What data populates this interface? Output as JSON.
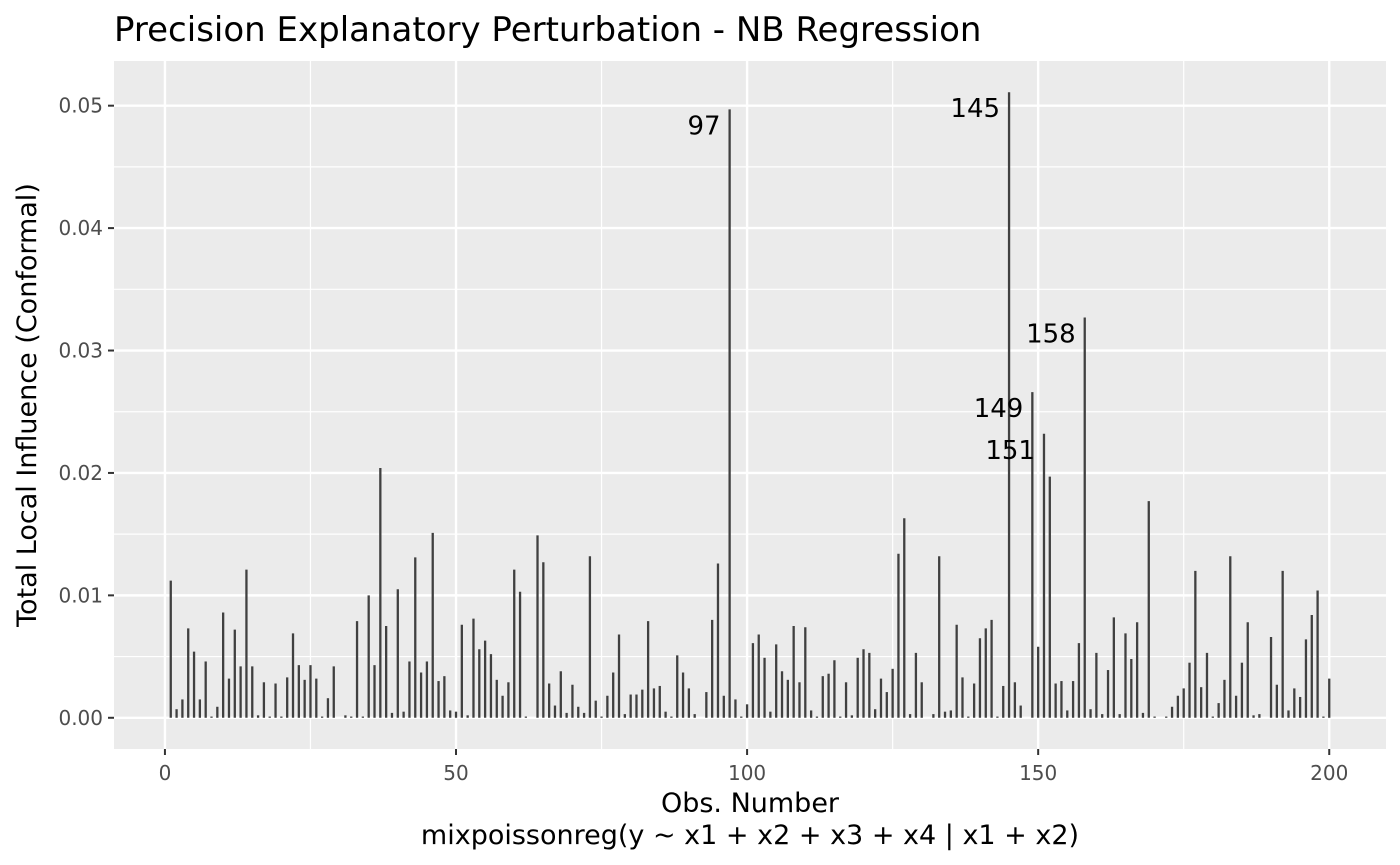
{
  "chart_data": {
    "type": "bar",
    "title": "Precision Explanatory Perturbation - NB Regression",
    "xlabel": "Obs. Number",
    "xlabel_sub": "mixpoissonreg(y ~ x1 + x2 + x3 + x4 | x1 + x2)",
    "ylabel": "Total Local Influence (Conformal)",
    "xlim": [
      -8.75,
      209.75
    ],
    "ylim": [
      -0.00255,
      0.05365
    ],
    "x_ticks": [
      0,
      50,
      100,
      150,
      200
    ],
    "x_tick_labels": [
      "0",
      "50",
      "100",
      "150",
      "200"
    ],
    "y_ticks": [
      0,
      0.01,
      0.02,
      0.03,
      0.04,
      0.05
    ],
    "y_tick_labels": [
      "0.00",
      "0.01",
      "0.02",
      "0.03",
      "0.04",
      "0.05"
    ],
    "grid": true,
    "panel_color": "#ebebeb",
    "bar_color": "#404040",
    "x": [
      1,
      2,
      3,
      4,
      5,
      6,
      7,
      8,
      9,
      10,
      11,
      12,
      13,
      14,
      15,
      16,
      17,
      18,
      19,
      20,
      21,
      22,
      23,
      24,
      25,
      26,
      27,
      28,
      29,
      30,
      31,
      32,
      33,
      34,
      35,
      36,
      37,
      38,
      39,
      40,
      41,
      42,
      43,
      44,
      45,
      46,
      47,
      48,
      49,
      50,
      51,
      52,
      53,
      54,
      55,
      56,
      57,
      58,
      59,
      60,
      61,
      62,
      63,
      64,
      65,
      66,
      67,
      68,
      69,
      70,
      71,
      72,
      73,
      74,
      75,
      76,
      77,
      78,
      79,
      80,
      81,
      82,
      83,
      84,
      85,
      86,
      87,
      88,
      89,
      90,
      91,
      92,
      93,
      94,
      95,
      96,
      97,
      98,
      99,
      100,
      101,
      102,
      103,
      104,
      105,
      106,
      107,
      108,
      109,
      110,
      111,
      112,
      113,
      114,
      115,
      116,
      117,
      118,
      119,
      120,
      121,
      122,
      123,
      124,
      125,
      126,
      127,
      128,
      129,
      130,
      131,
      132,
      133,
      134,
      135,
      136,
      137,
      138,
      139,
      140,
      141,
      142,
      143,
      144,
      145,
      146,
      147,
      148,
      149,
      150,
      151,
      152,
      153,
      154,
      155,
      156,
      157,
      158,
      159,
      160,
      161,
      162,
      163,
      164,
      165,
      166,
      167,
      168,
      169,
      170,
      171,
      172,
      173,
      174,
      175,
      176,
      177,
      178,
      179,
      180,
      181,
      182,
      183,
      184,
      185,
      186,
      187,
      188,
      189,
      190,
      191,
      192,
      193,
      194,
      195,
      196,
      197,
      198,
      199,
      200
    ],
    "values": [
      0.0112,
      0.0007,
      0.0015,
      0.0073,
      0.0054,
      0.0015,
      0.0046,
      0.0001,
      0.0009,
      0.0086,
      0.0032,
      0.0072,
      0.0042,
      0.0121,
      0.0042,
      0.0002,
      0.0029,
      0.0001,
      0.0028,
      0.0001,
      0.0033,
      0.0069,
      0.0043,
      0.0031,
      0.0043,
      0.0032,
      0.0001,
      0.0016,
      0.0042,
      0.0,
      0.0002,
      0.0001,
      0.0079,
      0.0001,
      0.01,
      0.0043,
      0.0204,
      0.0075,
      0.0004,
      0.0105,
      0.0005,
      0.0046,
      0.0131,
      0.0037,
      0.0046,
      0.0151,
      0.003,
      0.0034,
      0.0006,
      0.0005,
      0.0076,
      0.0002,
      0.0081,
      0.0056,
      0.0063,
      0.0052,
      0.0031,
      0.0018,
      0.0029,
      0.0121,
      0.0103,
      0.0001,
      0.0,
      0.0149,
      0.0127,
      0.0028,
      0.001,
      0.0038,
      0.0004,
      0.0027,
      0.0009,
      0.0004,
      0.0132,
      0.0014,
      0.0001,
      0.0018,
      0.0037,
      0.0068,
      0.0003,
      0.0019,
      0.0019,
      0.0023,
      0.0079,
      0.0024,
      0.0026,
      0.0005,
      0.0001,
      0.0051,
      0.0037,
      0.0024,
      0.0003,
      0.0,
      0.0021,
      0.008,
      0.0126,
      0.0018,
      0.0497,
      0.0015,
      0.0001,
      0.0011,
      0.0061,
      0.0068,
      0.0049,
      0.0005,
      0.006,
      0.0038,
      0.0031,
      0.0075,
      0.0029,
      0.0074,
      0.0006,
      0.0001,
      0.0034,
      0.0036,
      0.0047,
      0.0001,
      0.0029,
      0.0002,
      0.0049,
      0.0056,
      0.0053,
      0.0007,
      0.0032,
      0.0021,
      0.004,
      0.0134,
      0.0163,
      0.0003,
      0.0053,
      0.0029,
      0.0,
      0.0003,
      0.0132,
      0.0005,
      0.0006,
      0.0076,
      0.0033,
      0.0001,
      0.0028,
      0.0065,
      0.0073,
      0.008,
      0.0001,
      0.0026,
      0.0511,
      0.0029,
      0.001,
      0.0,
      0.0266,
      0.0058,
      0.0232,
      0.0197,
      0.0028,
      0.003,
      0.0006,
      0.003,
      0.0061,
      0.0327,
      0.0007,
      0.0053,
      0.0003,
      0.0039,
      0.0082,
      0.0003,
      0.0069,
      0.0048,
      0.0078,
      0.0004,
      0.0177,
      0.0001,
      0.0,
      0.0001,
      0.0009,
      0.0018,
      0.0024,
      0.0045,
      0.012,
      0.0025,
      0.0053,
      0.0001,
      0.0012,
      0.0031,
      0.0132,
      0.0018,
      0.0045,
      0.0078,
      0.0002,
      0.0003,
      0.0,
      0.0066,
      0.0027,
      0.012,
      0.0006,
      0.0024,
      0.0017,
      0.0064,
      0.0084,
      0.0104,
      0.0001,
      0.0032
    ],
    "annotations": [
      {
        "x": 97,
        "y": 0.0497,
        "label": "97"
      },
      {
        "x": 145,
        "y": 0.0511,
        "label": "145"
      },
      {
        "x": 158,
        "y": 0.0327,
        "label": "158"
      },
      {
        "x": 149,
        "y": 0.0266,
        "label": "149"
      },
      {
        "x": 151,
        "y": 0.0232,
        "label": "151"
      }
    ]
  }
}
